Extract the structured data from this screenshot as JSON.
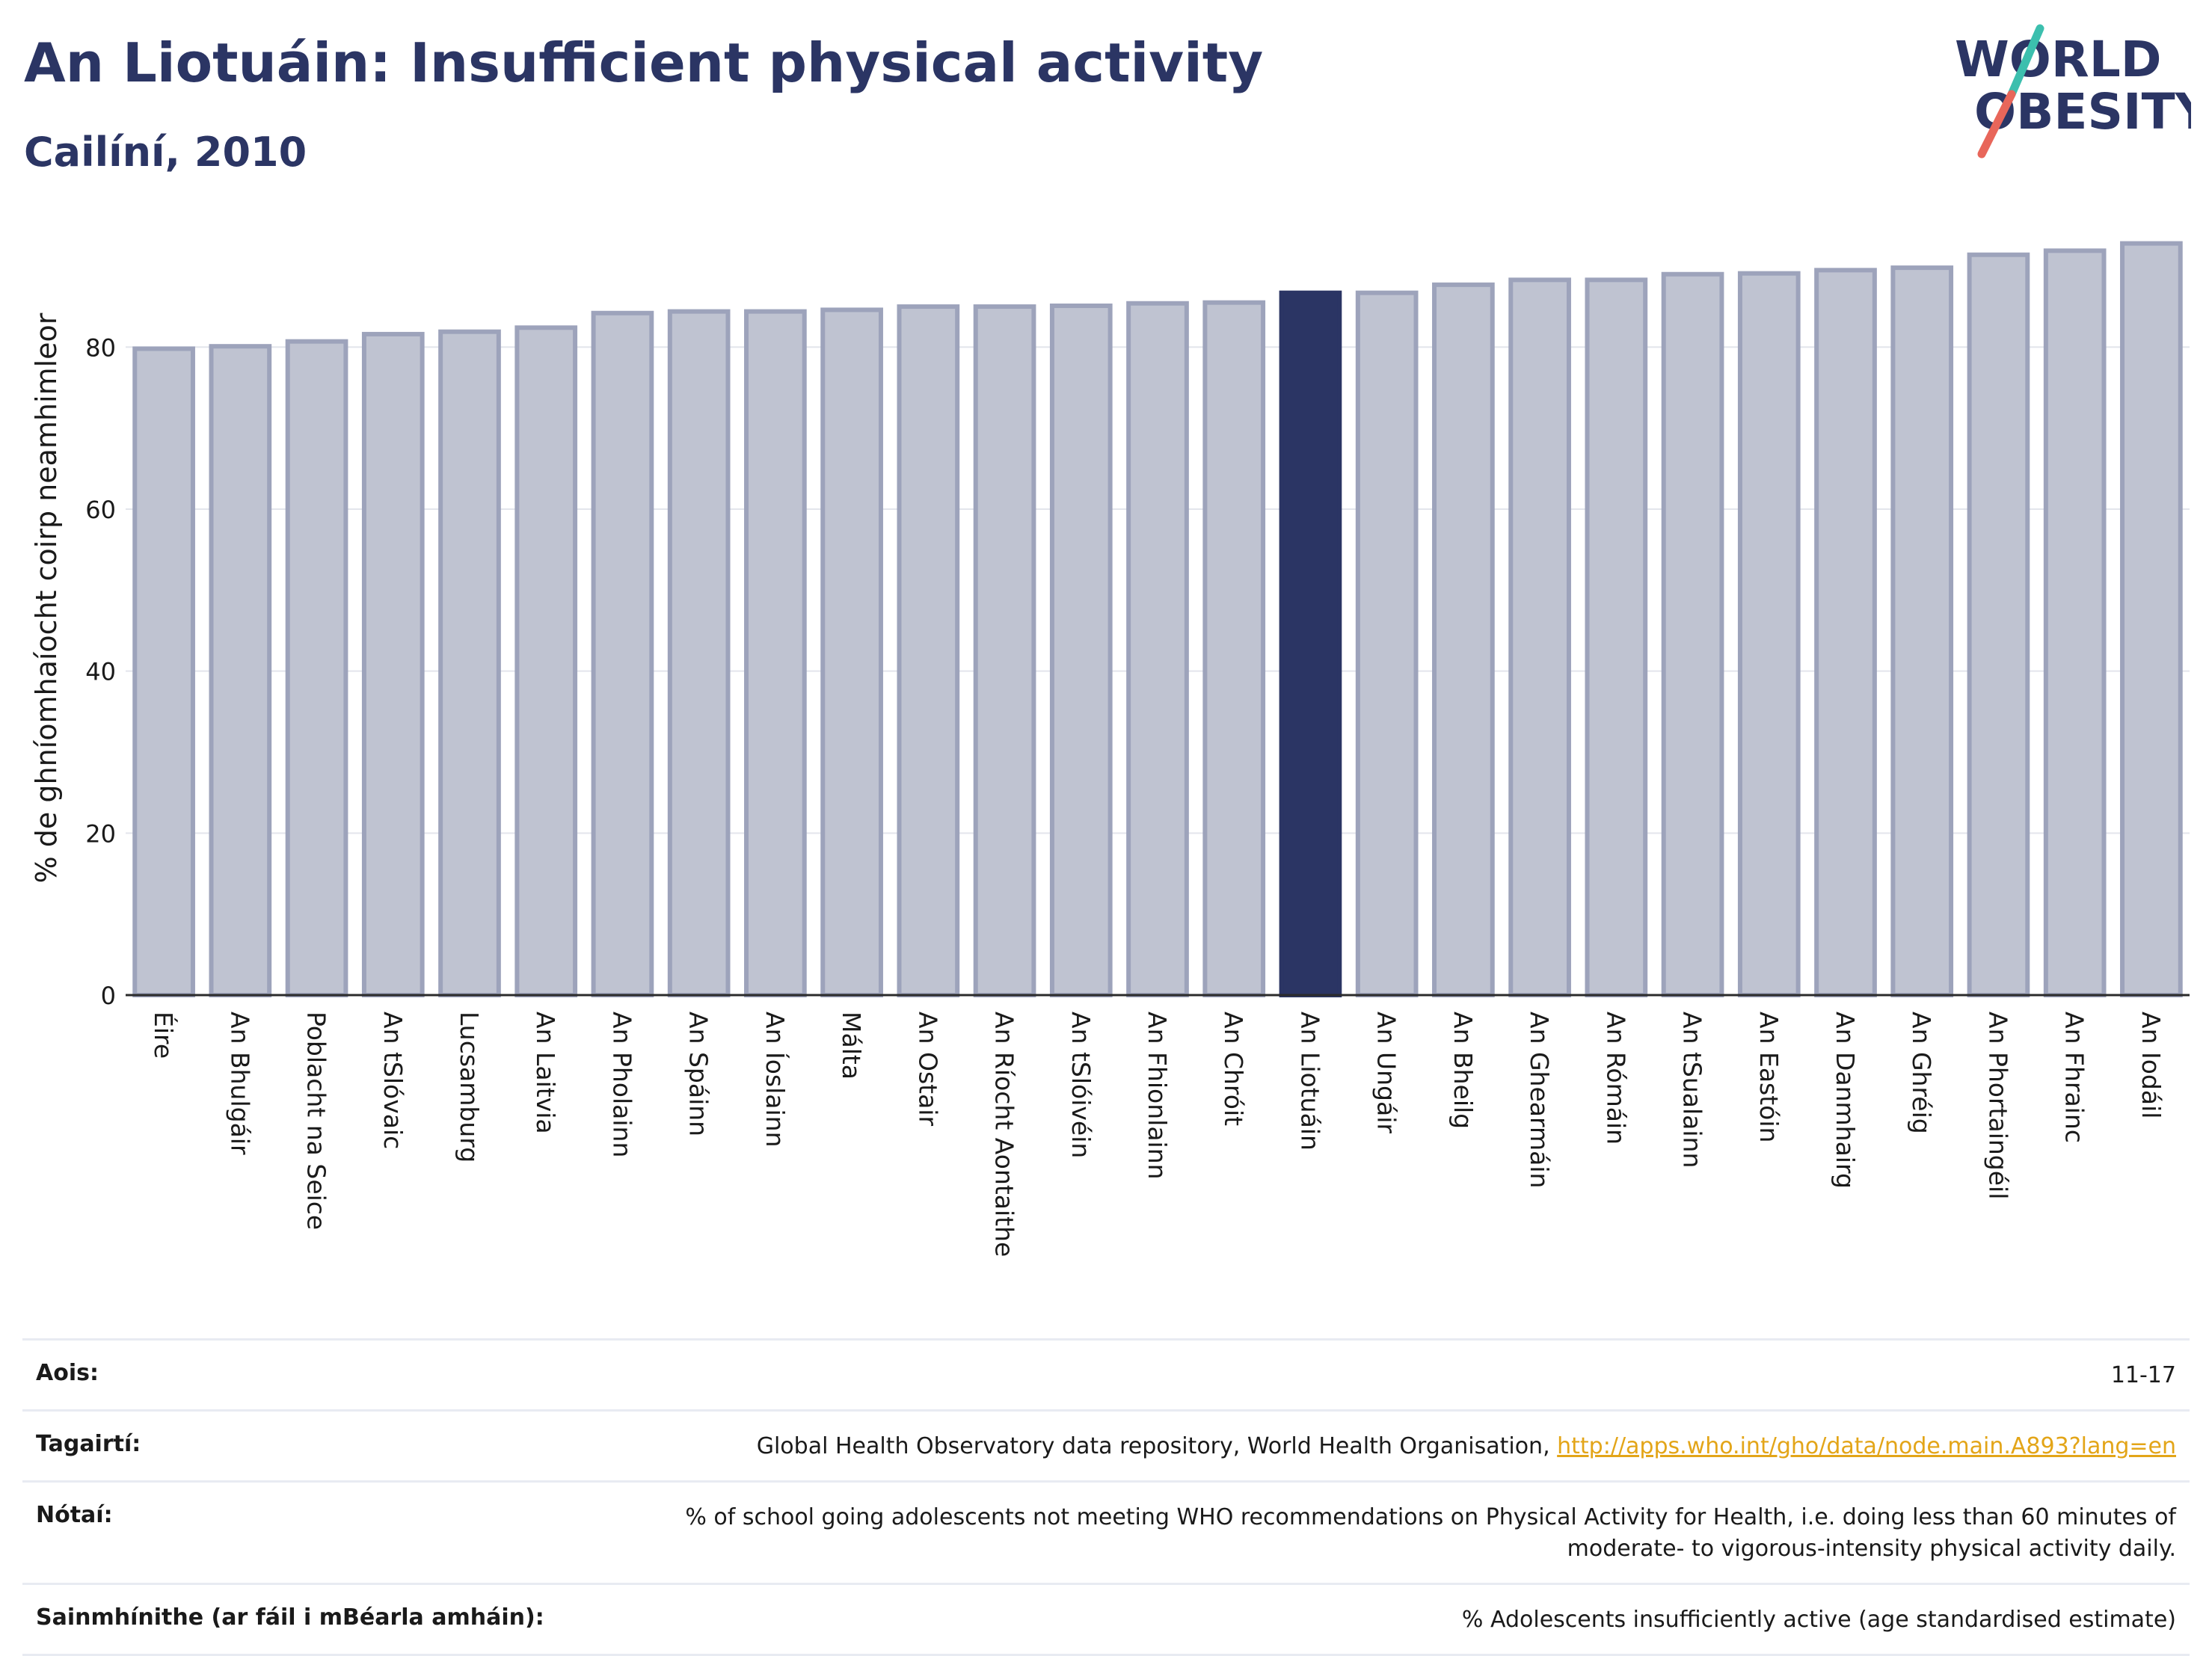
{
  "header": {
    "title": "An Liotuáin: Insufficient physical activity",
    "subtitle": "Cailíní, 2010"
  },
  "logo": {
    "line1": "WORLD",
    "line2": "OBESITY"
  },
  "colors": {
    "bar": "#bfc3d1",
    "bar_border": "#9da3bb",
    "highlight": "#2b3564",
    "title": "#2b3564",
    "link": "#e3a518",
    "logo_teal": "#3cbfae",
    "logo_red": "#e8665a"
  },
  "chart_data": {
    "type": "bar",
    "title": "An Liotuáin: Insufficient physical activity",
    "subtitle": "Cailíní, 2010",
    "ylabel": "% de ghníomhaíocht coirp neamhimleor",
    "xlabel": "",
    "ylim": [
      0,
      93.5
    ],
    "yticks": [
      0,
      20,
      40,
      60,
      80
    ],
    "grid": true,
    "highlight": "An Liotuáin",
    "categories": [
      "Éire",
      "An Bhulgáir",
      "Poblacht na Seice",
      "An tSlóvaic",
      "Lucsamburg",
      "An Laitvia",
      "An Pholainn",
      "An Spáinn",
      "An Íoslainn",
      "Málta",
      "An Ostair",
      "An Ríocht Aontaithe",
      "An tSlóivéin",
      "An Fhionlainn",
      "An Chróit",
      "An Liotuáin",
      "An Ungáir",
      "An Bheilg",
      "An Ghearmáin",
      "An Rómáin",
      "An tSualainn",
      "An Eastóin",
      "An Danmhairg",
      "An Ghréig",
      "An Phortaingéil",
      "An Fhrainc",
      "An Iodáil"
    ],
    "values": [
      79.8,
      80.1,
      80.7,
      81.6,
      81.9,
      82.4,
      84.2,
      84.4,
      84.4,
      84.6,
      85.0,
      85.0,
      85.1,
      85.4,
      85.5,
      86.7,
      86.7,
      87.7,
      88.3,
      88.3,
      89.0,
      89.1,
      89.5,
      89.8,
      91.4,
      91.9,
      92.8
    ]
  },
  "meta": {
    "age_label": "Aois:",
    "age_value": "11-17",
    "refs_label": "Tagairtí:",
    "refs_text": "Global Health Observatory data repository, World Health Organisation, ",
    "refs_link": "http://apps.who.int/gho/data/node.main.A893?lang=en",
    "notes_label": "Nótaí:",
    "notes_value": "% of school going adolescents not meeting WHO recommendations on Physical Activity for Health, i.e. doing less than 60 minutes of moderate- to vigorous-intensity physical activity daily.",
    "defs_label": "Sainmhínithe (ar fáil i mBéarla amháin):",
    "defs_value": "% Adolescents insufficiently active (age standardised estimate)"
  }
}
